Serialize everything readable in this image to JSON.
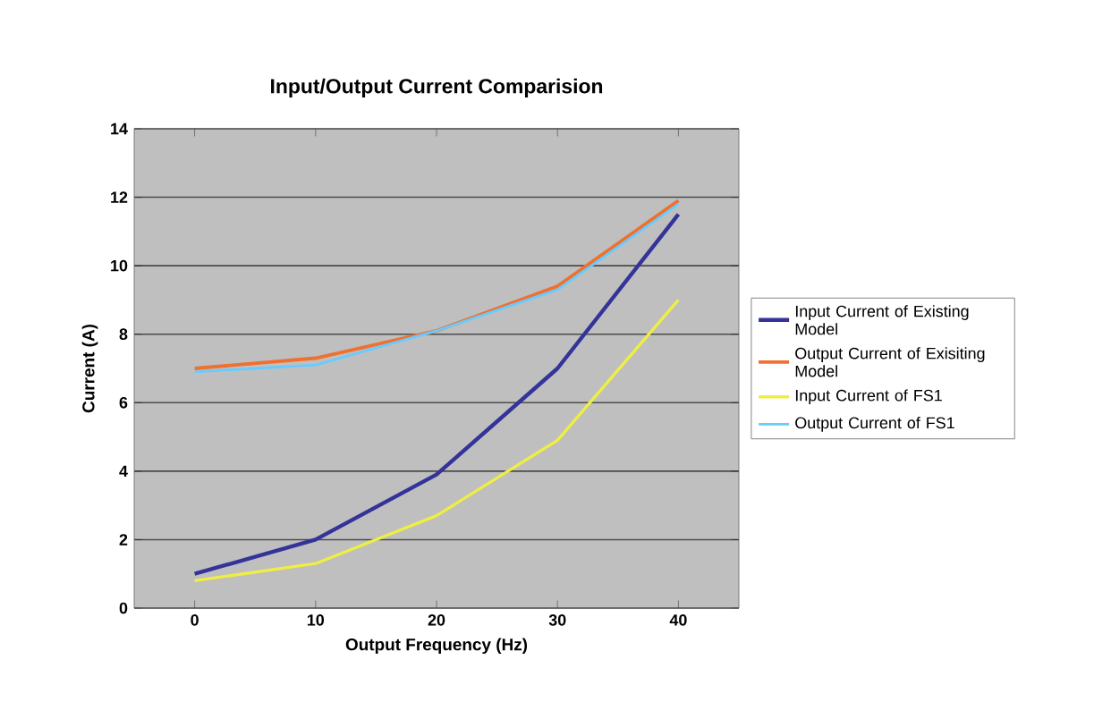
{
  "chart_data": {
    "type": "line",
    "title": "Input/Output Current Comparision",
    "xlabel": "Output Frequency (Hz)",
    "ylabel": "Current (A)",
    "categories": [
      "0",
      "10",
      "20",
      "30",
      "40"
    ],
    "series": [
      {
        "name": "Input Current of Existing Model",
        "color": "#333399",
        "values": [
          1.0,
          2.0,
          3.9,
          7.0,
          11.5
        ]
      },
      {
        "name": "Output Current of Exisiting Model",
        "color": "#f07030",
        "values": [
          7.0,
          7.3,
          8.1,
          9.4,
          11.9
        ]
      },
      {
        "name": "Input Current of FS1",
        "color": "#eeee44",
        "values": [
          0.8,
          1.3,
          2.7,
          4.9,
          9.0
        ]
      },
      {
        "name": "Output Current of FS1",
        "color": "#66ccff",
        "values": [
          6.9,
          7.1,
          8.1,
          9.3,
          11.8
        ]
      }
    ],
    "ylim": [
      0,
      14
    ],
    "yticks": [
      0,
      2,
      4,
      6,
      8,
      10,
      12,
      14
    ],
    "grid": "y",
    "legend": "right",
    "marker": "none",
    "line_style": "solid"
  }
}
